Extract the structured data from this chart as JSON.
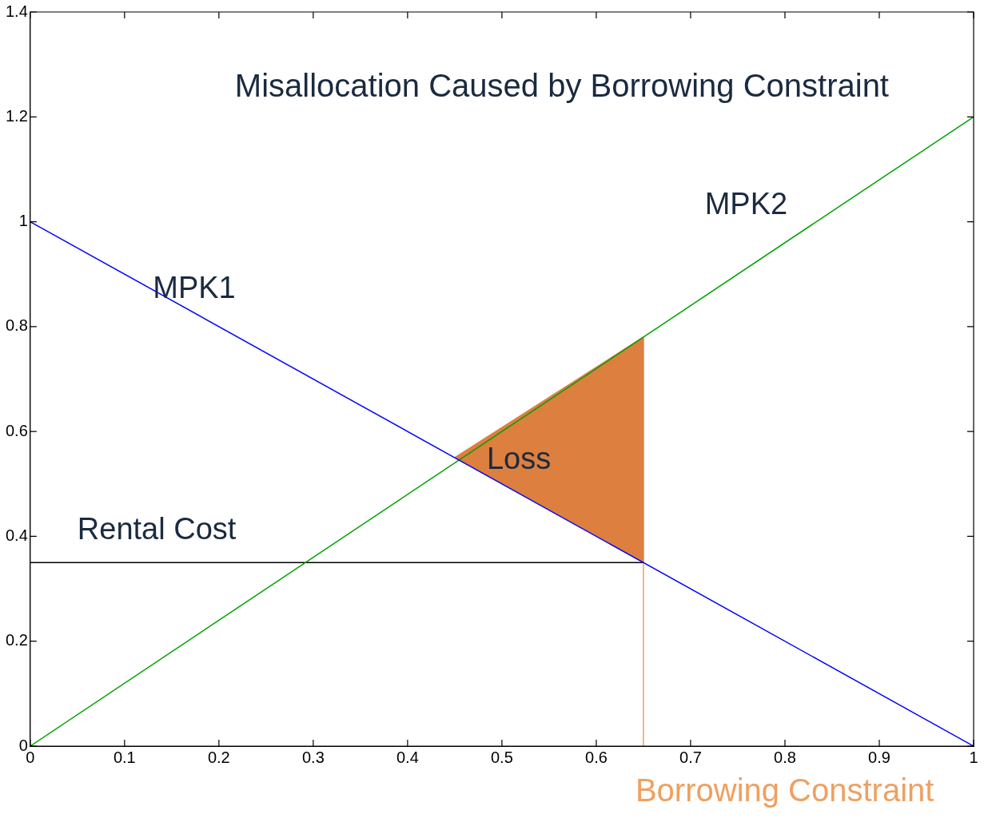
{
  "chart_data": {
    "type": "line",
    "title": "Misallocation Caused by Borrowing Constraint",
    "xlim": [
      0,
      1
    ],
    "xticks": [
      0,
      0.1,
      0.2,
      0.3,
      0.4,
      0.5,
      0.6,
      0.7,
      0.8,
      0.9,
      1
    ],
    "ylim": [
      0,
      1.4
    ],
    "yticks": [
      0,
      0.2,
      0.4,
      0.6,
      0.8,
      1,
      1.2,
      1.4
    ],
    "grid": false,
    "legend": false,
    "marker": "none",
    "line_style": "solid",
    "series": [
      {
        "type": "area",
        "color": "#dd7f3e",
        "x": [
          0.45,
          0.65,
          0.65
        ],
        "values": [
          0.55,
          0.78,
          0.35
        ]
      },
      {
        "color": "#0000ff",
        "x": [
          0,
          1
        ],
        "values": [
          1,
          0
        ]
      },
      {
        "color": "#00a000",
        "x": [
          0,
          1
        ],
        "values": [
          0,
          1.2
        ]
      },
      {
        "color": "#000000",
        "x": [
          0,
          0.65
        ],
        "values": [
          0.35,
          0.35
        ]
      },
      {
        "name": "Borrowing Constraint",
        "color": "#f0a060",
        "x": [
          0.65,
          0.65
        ],
        "values": [
          0,
          0.35
        ]
      }
    ],
    "annotations": [
      "MPK1",
      "MPK2",
      "Rental Cost",
      {
        "text": "Loss",
        "x": 0.45,
        "y": 0.55
      }
    ]
  }
}
